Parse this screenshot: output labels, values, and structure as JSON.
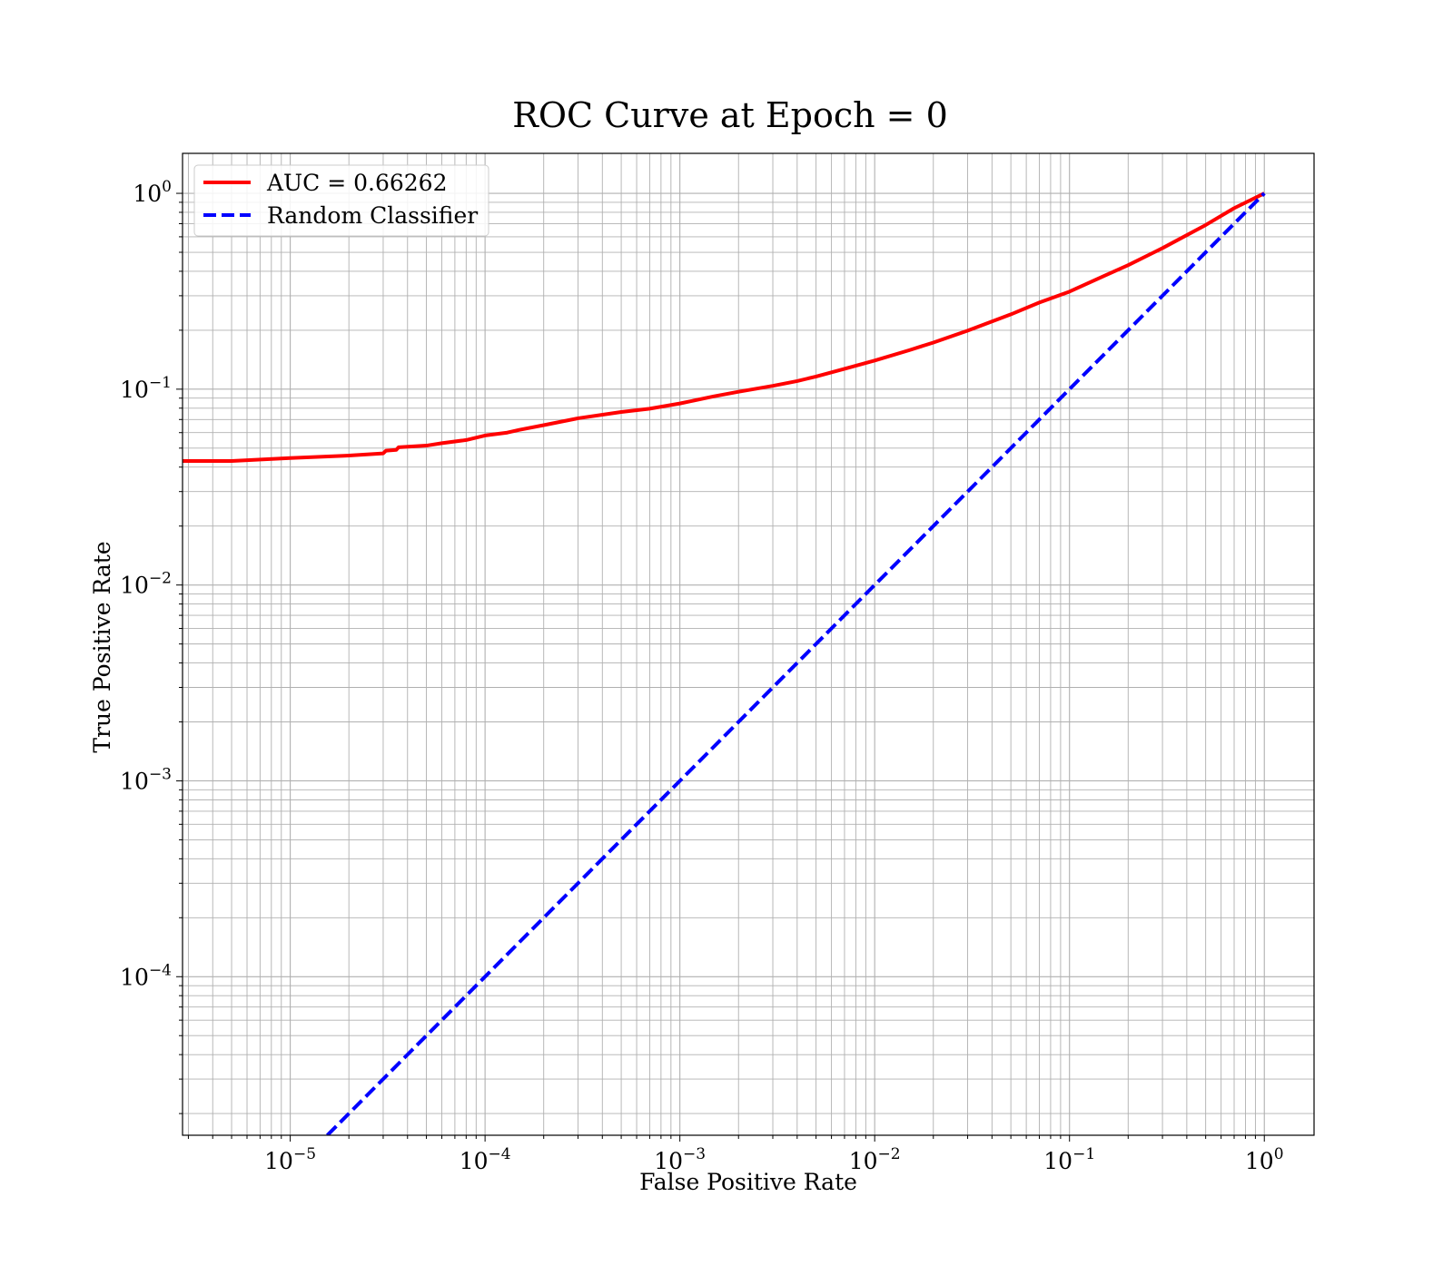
{
  "chart_data": {
    "type": "line",
    "title": "ROC Curve at Epoch = 0",
    "xlabel": "False Positive Rate",
    "ylabel": "True Positive Rate",
    "xscale": "log",
    "yscale": "log",
    "xlim": [
      2.8e-06,
      1.8
    ],
    "ylim": [
      1.55e-05,
      1.6
    ],
    "grid": true,
    "grid_minor": true,
    "legend_location": "upper-left",
    "x_ticks": [
      {
        "base": "10",
        "exp": "−5",
        "value": 1e-05
      },
      {
        "base": "10",
        "exp": "−4",
        "value": 0.0001
      },
      {
        "base": "10",
        "exp": "−3",
        "value": 0.001
      },
      {
        "base": "10",
        "exp": "−2",
        "value": 0.01
      },
      {
        "base": "10",
        "exp": "−1",
        "value": 0.1
      },
      {
        "base": "10",
        "exp": "0",
        "value": 1
      }
    ],
    "y_ticks": [
      {
        "base": "10",
        "exp": "0",
        "value": 1
      },
      {
        "base": "10",
        "exp": "−1",
        "value": 0.1
      },
      {
        "base": "10",
        "exp": "−2",
        "value": 0.01
      },
      {
        "base": "10",
        "exp": "−3",
        "value": 0.001
      },
      {
        "base": "10",
        "exp": "−4",
        "value": 0.0001
      }
    ],
    "series": [
      {
        "name": "AUC = 0.66262",
        "color": "#ff0000",
        "style": "solid",
        "x": [
          2.8e-06,
          5e-06,
          1e-05,
          2e-05,
          3e-05,
          3.1e-05,
          3.5e-05,
          3.6e-05,
          5e-05,
          6e-05,
          8e-05,
          0.0001,
          0.00013,
          0.00015,
          0.0002,
          0.0003,
          0.0005,
          0.0007,
          0.001,
          0.0015,
          0.002,
          0.003,
          0.004,
          0.005,
          0.007,
          0.01,
          0.015,
          0.02,
          0.03,
          0.05,
          0.07,
          0.1,
          0.15,
          0.2,
          0.3,
          0.5,
          0.7,
          1.0
        ],
        "y": [
          0.043,
          0.043,
          0.0445,
          0.0458,
          0.047,
          0.0485,
          0.049,
          0.0505,
          0.0515,
          0.053,
          0.055,
          0.058,
          0.06,
          0.062,
          0.0655,
          0.071,
          0.0765,
          0.0795,
          0.0845,
          0.092,
          0.097,
          0.104,
          0.11,
          0.116,
          0.127,
          0.14,
          0.158,
          0.173,
          0.199,
          0.241,
          0.277,
          0.315,
          0.378,
          0.43,
          0.525,
          0.689,
          0.84,
          1.0
        ]
      },
      {
        "name": "Random Classifier",
        "color": "#0000ff",
        "style": "dashed",
        "x": [
          1.55e-05,
          1.0
        ],
        "y": [
          1.55e-05,
          1.0
        ]
      }
    ]
  }
}
